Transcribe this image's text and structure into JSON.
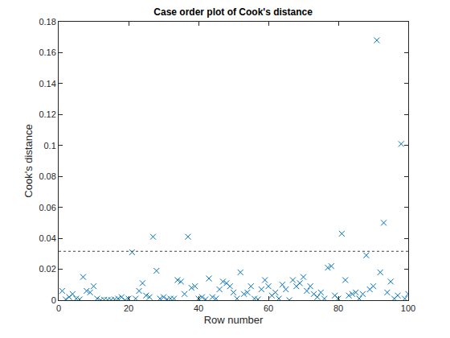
{
  "chart_data": {
    "type": "scatter",
    "title": "Case order plot of Cook's distance",
    "x_label": "Row number",
    "y_label": "Cook's distance",
    "x": [
      1,
      2,
      3,
      4,
      5,
      6,
      7,
      8,
      9,
      10,
      11,
      12,
      13,
      14,
      15,
      16,
      17,
      18,
      19,
      20,
      21,
      22,
      23,
      24,
      25,
      26,
      27,
      28,
      29,
      30,
      31,
      32,
      33,
      34,
      35,
      36,
      37,
      38,
      39,
      40,
      41,
      42,
      43,
      44,
      45,
      46,
      47,
      48,
      49,
      50,
      51,
      52,
      53,
      54,
      55,
      56,
      57,
      58,
      59,
      60,
      61,
      62,
      63,
      64,
      65,
      66,
      67,
      68,
      69,
      70,
      71,
      72,
      73,
      74,
      75,
      76,
      77,
      78,
      79,
      80,
      81,
      82,
      83,
      84,
      85,
      86,
      87,
      88,
      89,
      90,
      91,
      92,
      93,
      94,
      95,
      96,
      97,
      98,
      99,
      100
    ],
    "values": [
      0.006,
      0.0005,
      0.002,
      0.004,
      0.001,
      0.0005,
      0.015,
      0.006,
      0.005,
      0.009,
      0.001,
      0.0,
      0.0003,
      0.0002,
      0.0001,
      0.0005,
      0.001,
      0.002,
      0.0,
      0.001,
      0.031,
      0.001,
      0.006,
      0.011,
      0.003,
      0.002,
      0.041,
      0.019,
      0.001,
      0.002,
      0.0005,
      0.001,
      0.001,
      0.013,
      0.012,
      0.004,
      0.041,
      0.008,
      0.009,
      0.001,
      0.002,
      0.0005,
      0.014,
      0.002,
      0.001,
      0.007,
      0.012,
      0.011,
      0.009,
      0.005,
      0.001,
      0.018,
      0.004,
      0.005,
      0.009,
      0.001,
      0.0005,
      0.007,
      0.013,
      0.009,
      0.003,
      0.005,
      0.001,
      0.01,
      0.007,
      0.0,
      0.013,
      0.009,
      0.011,
      0.015,
      0.006,
      0.009,
      0.004,
      0.002,
      0.005,
      0.001,
      0.021,
      0.022,
      0.003,
      0.001,
      0.043,
      0.013,
      0.003,
      0.004,
      0.005,
      0.001,
      0.004,
      0.029,
      0.007,
      0.009,
      0.168,
      0.018,
      0.05,
      0.005,
      0.012,
      0.001,
      0.003,
      0.101,
      0.001,
      0.004
    ],
    "color": "#0072bd",
    "marker": "x",
    "threshold": 0.0316,
    "xlim": [
      0,
      100
    ],
    "xticks": [
      0,
      20,
      40,
      60,
      80,
      100
    ],
    "ylim": [
      0,
      0.18
    ],
    "yticks": [
      0,
      0.02,
      0.04,
      0.06,
      0.08,
      0.1,
      0.12,
      0.14,
      0.16,
      0.18
    ],
    "grid": false
  }
}
